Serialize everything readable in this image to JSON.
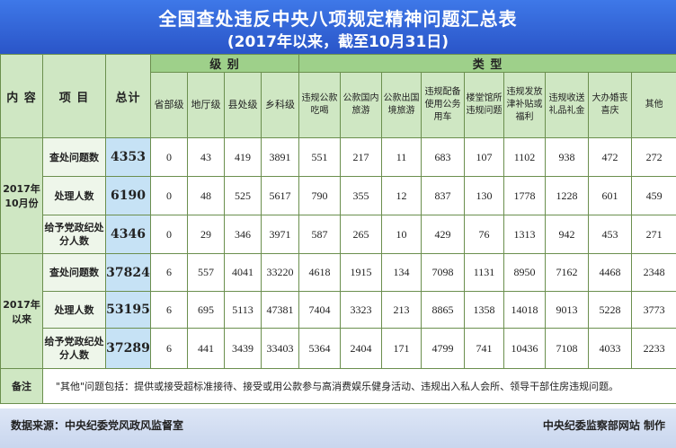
{
  "title": "全国查处违反中央八项规定精神问题汇总表",
  "subtitle": "(2017年以来，截至10月31日)",
  "header": {
    "content": "内 容",
    "item": "项 目",
    "total": "总计",
    "level_group": "级   别",
    "type_group": "类   型"
  },
  "chart_data": {
    "type": "table",
    "level_columns": [
      "省部级",
      "地厅级",
      "县处级",
      "乡科级"
    ],
    "type_columns": [
      "违规公款吃喝",
      "公款国内旅游",
      "公款出国境旅游",
      "违规配备使用公务用车",
      "楼堂馆所违规问题",
      "违规发放津补贴或福利",
      "违规收送礼品礼金",
      "大办婚丧喜庆",
      "其他"
    ],
    "groups": [
      {
        "period": "2017年10月份",
        "rows": [
          {
            "item": "查处问题数",
            "total": "4353",
            "levels": [
              "0",
              "43",
              "419",
              "3891"
            ],
            "types": [
              "551",
              "217",
              "11",
              "683",
              "107",
              "1102",
              "938",
              "472",
              "272"
            ]
          },
          {
            "item": "处理人数",
            "total": "6190",
            "levels": [
              "0",
              "48",
              "525",
              "5617"
            ],
            "types": [
              "790",
              "355",
              "12",
              "837",
              "130",
              "1778",
              "1228",
              "601",
              "459"
            ]
          },
          {
            "item": "给予党政纪处分人数",
            "total": "4346",
            "levels": [
              "0",
              "29",
              "346",
              "3971"
            ],
            "types": [
              "587",
              "265",
              "10",
              "429",
              "76",
              "1313",
              "942",
              "453",
              "271"
            ]
          }
        ]
      },
      {
        "period": "2017年以来",
        "rows": [
          {
            "item": "查处问题数",
            "total": "37824",
            "levels": [
              "6",
              "557",
              "4041",
              "33220"
            ],
            "types": [
              "4618",
              "1915",
              "134",
              "7098",
              "1131",
              "8950",
              "7162",
              "4468",
              "2348"
            ]
          },
          {
            "item": "处理人数",
            "total": "53195",
            "levels": [
              "6",
              "695",
              "5113",
              "47381"
            ],
            "types": [
              "7404",
              "3323",
              "213",
              "8865",
              "1358",
              "14018",
              "9013",
              "5228",
              "3773"
            ]
          },
          {
            "item": "给予党政纪处分人数",
            "total": "37289",
            "levels": [
              "6",
              "441",
              "3439",
              "33403"
            ],
            "types": [
              "5364",
              "2404",
              "171",
              "4799",
              "741",
              "10436",
              "7108",
              "4033",
              "2233"
            ]
          }
        ]
      }
    ]
  },
  "note_label": "备注",
  "note_text": "\"其他\"问题包括：提供或接受超标准接待、接受或用公款参与高消费娱乐健身活动、违规出入私人会所、领导干部住房违规问题。",
  "footer": {
    "source": "数据来源：中央纪委党风政风监督室",
    "maker": "中央纪委监察部网站  制作"
  },
  "colors": {
    "banner": "#2f62d8",
    "header_green": "#9ed08a",
    "total_blue": "#c6e2f5"
  }
}
